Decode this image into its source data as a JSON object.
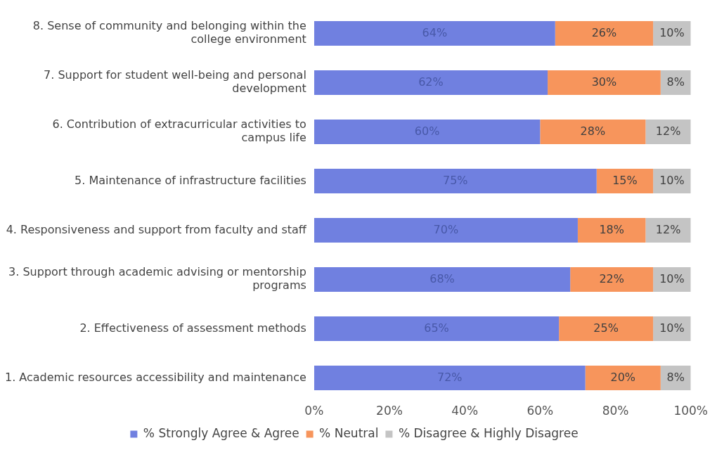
{
  "chart_data": {
    "type": "bar",
    "orientation": "horizontal",
    "stacked": true,
    "categories": [
      "8. Sense of community and belonging within the college environment",
      "7. Support for student well-being and personal development",
      "6. Contribution of extracurricular activities to campus life",
      "5. Maintenance of infrastructure facilities",
      "4. Responsiveness and support from faculty and staff",
      "3. Support through academic advising or mentorship programs",
      "2. Effectiveness of assessment methods",
      "1. Academic resources accessibility and maintenance"
    ],
    "series": [
      {
        "name": "% Strongly Agree & Agree",
        "color": "#7080e0",
        "values": [
          64,
          62,
          60,
          75,
          70,
          68,
          65,
          72
        ],
        "value_labels": [
          "64%",
          "62%",
          "60%",
          "75%",
          "70%",
          "68%",
          "65%",
          "72%"
        ]
      },
      {
        "name": "% Neutral",
        "color": "#f7955c",
        "values": [
          26,
          30,
          28,
          15,
          18,
          22,
          25,
          20
        ],
        "value_labels": [
          "26%",
          "30%",
          "28%",
          "15%",
          "18%",
          "22%",
          "25%",
          "20%"
        ]
      },
      {
        "name": "% Disagree & Highly Disagree",
        "color": "#c4c4c4",
        "values": [
          10,
          8,
          12,
          10,
          12,
          10,
          10,
          8
        ],
        "value_labels": [
          "10%",
          "8%",
          "12%",
          "10%",
          "12%",
          "10%",
          "10%",
          "8%"
        ]
      }
    ],
    "xlim": [
      0,
      100
    ],
    "xticks": [
      {
        "value": 0,
        "label": "0%"
      },
      {
        "value": 20,
        "label": "20%"
      },
      {
        "value": 40,
        "label": "40%"
      },
      {
        "value": 60,
        "label": "60%"
      },
      {
        "value": 80,
        "label": "80%"
      },
      {
        "value": 100,
        "label": "100%"
      }
    ],
    "grid": false,
    "legend": "bottom"
  }
}
